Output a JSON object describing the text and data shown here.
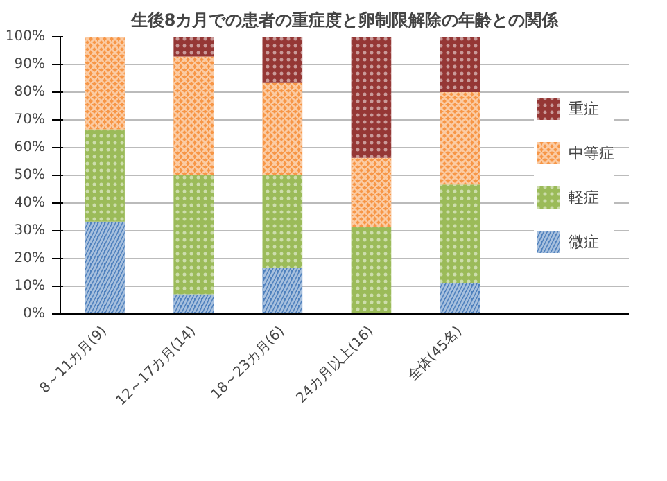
{
  "chart_data": {
    "type": "bar",
    "stacked": true,
    "title": "生後8カ月での患者の重症度と卵制限解除の年齢との関係",
    "categories": [
      "8～11カ月(9)",
      "12～17カ月(14)",
      "18～23カ月(6)",
      "24カ月以上(16)",
      "全体(45名)"
    ],
    "series": [
      {
        "name": "微症",
        "color": "#4f81bd",
        "values": [
          33.3,
          7.1,
          16.7,
          0,
          11.1
        ]
      },
      {
        "name": "軽症",
        "color": "#9bbb59",
        "values": [
          33.3,
          42.9,
          33.3,
          31.3,
          35.6
        ]
      },
      {
        "name": "中等症",
        "color": "#f79646",
        "values": [
          33.3,
          42.9,
          33.3,
          25.0,
          33.3
        ]
      },
      {
        "name": "重症",
        "color": "#953735",
        "values": [
          0,
          7.1,
          16.7,
          43.8,
          20.0
        ]
      }
    ],
    "ylim": [
      0,
      100
    ],
    "yticks": [
      {
        "value": 0,
        "label": "0%"
      },
      {
        "value": 10,
        "label": "10%"
      },
      {
        "value": 20,
        "label": "20%"
      },
      {
        "value": 30,
        "label": "30%"
      },
      {
        "value": 40,
        "label": "40%"
      },
      {
        "value": 50,
        "label": "50%"
      },
      {
        "value": 60,
        "label": "60%"
      },
      {
        "value": 70,
        "label": "70%"
      },
      {
        "value": 80,
        "label": "80%"
      },
      {
        "value": 90,
        "label": "90%"
      },
      {
        "value": 100,
        "label": "100%"
      }
    ],
    "grid": "y",
    "legend": "right"
  }
}
